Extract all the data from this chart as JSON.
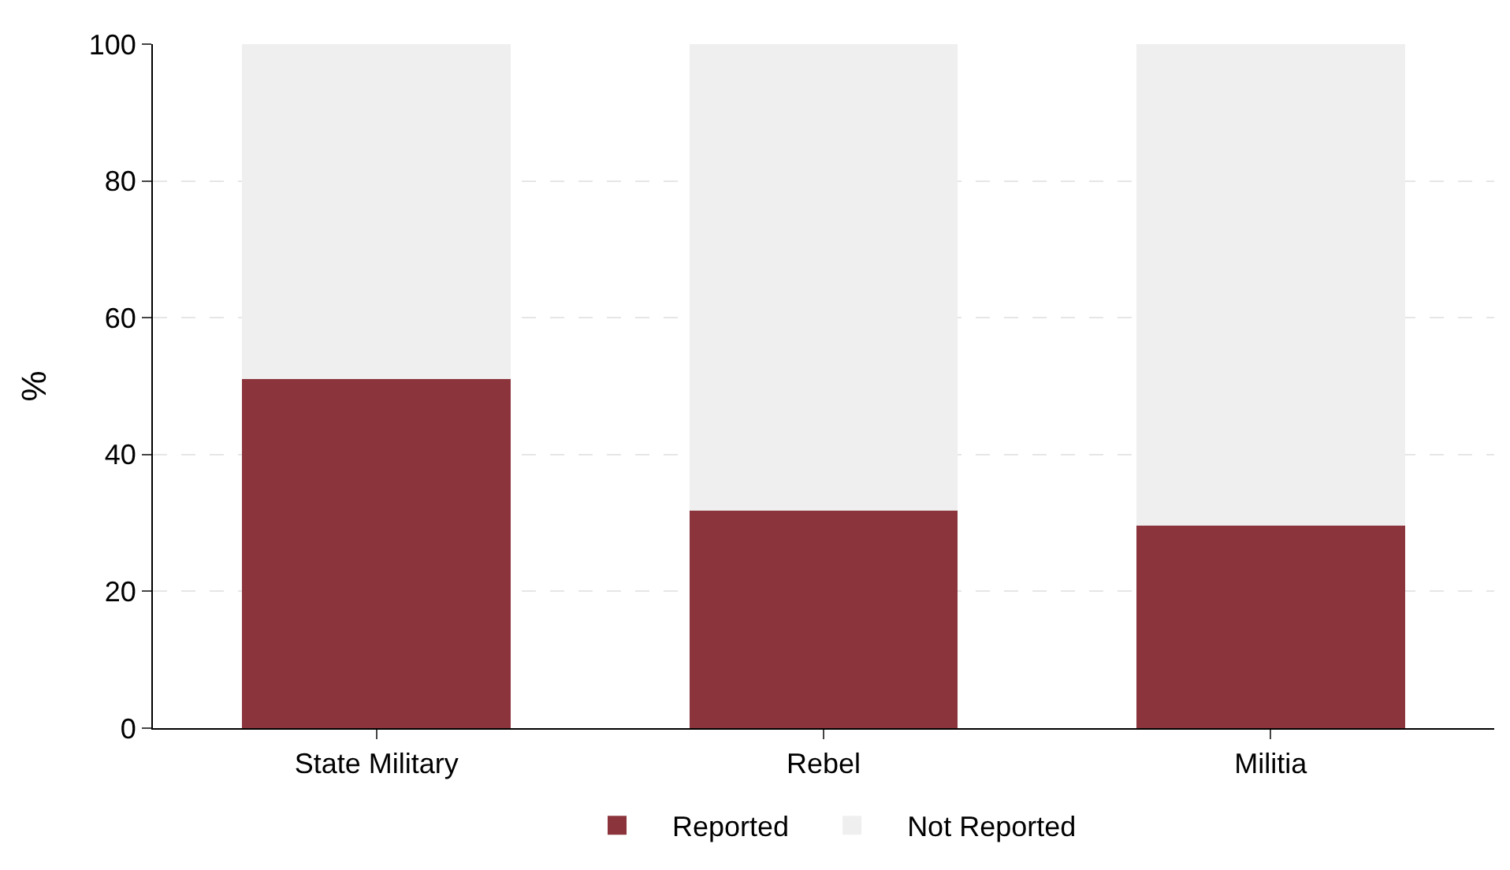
{
  "chart_data": {
    "type": "bar",
    "stacked": true,
    "ylabel": "%",
    "categories": [
      "State Military",
      "Rebel",
      "Militia"
    ],
    "series": [
      {
        "name": "Reported",
        "color": "#8b343c",
        "values": [
          51,
          31.8,
          29.6
        ]
      },
      {
        "name": "Not Reported",
        "color": "#efefef",
        "values": [
          49,
          68.2,
          70.4
        ]
      }
    ],
    "ylim": [
      0,
      100
    ],
    "yticks": [
      0,
      20,
      40,
      60,
      80,
      100
    ],
    "grid": "y",
    "legend": "bottom"
  }
}
